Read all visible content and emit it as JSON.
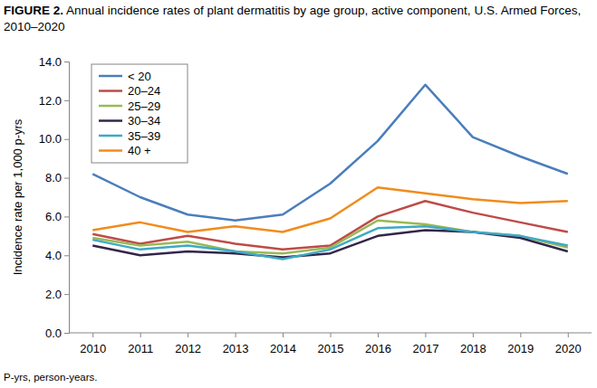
{
  "chart_data": {
    "type": "line",
    "title": "FIGURE 2. Annual incidence rates of plant dermatitis by age group, active component, U.S. Armed Forces, 2010–2020",
    "y_label": "Incidence rate per 1,000 p-yrs",
    "footnote": "P-yrs, person-years.",
    "categories": [
      "2010",
      "2011",
      "2012",
      "2013",
      "2014",
      "2015",
      "2016",
      "2017",
      "2018",
      "2019",
      "2020"
    ],
    "series": [
      {
        "name": "< 20",
        "color": "#4a7ebb",
        "values": [
          8.2,
          7.0,
          6.1,
          5.8,
          6.1,
          7.7,
          9.9,
          12.8,
          10.1,
          9.1,
          8.2
        ]
      },
      {
        "name": "20–24",
        "color": "#be4b48",
        "values": [
          5.1,
          4.6,
          5.0,
          4.6,
          4.3,
          4.5,
          6.0,
          6.8,
          6.2,
          5.7,
          5.2
        ]
      },
      {
        "name": "25–29",
        "color": "#98b954",
        "values": [
          4.9,
          4.5,
          4.7,
          4.2,
          4.1,
          4.4,
          5.8,
          5.6,
          5.2,
          5.0,
          4.4
        ]
      },
      {
        "name": "30–34",
        "color": "#33264a",
        "values": [
          4.5,
          4.0,
          4.2,
          4.1,
          3.9,
          4.1,
          5.0,
          5.3,
          5.2,
          4.9,
          4.2
        ]
      },
      {
        "name": "35–39",
        "color": "#3fa9c5",
        "values": [
          4.8,
          4.3,
          4.5,
          4.2,
          3.8,
          4.3,
          5.4,
          5.5,
          5.2,
          5.0,
          4.5
        ]
      },
      {
        "name": "40 +",
        "color": "#f08c1c",
        "values": [
          5.3,
          5.7,
          5.2,
          5.5,
          5.2,
          5.9,
          7.5,
          7.2,
          6.9,
          6.7,
          6.8
        ]
      }
    ],
    "ylim": [
      0,
      14
    ],
    "yticks": [
      {
        "value": 0,
        "label": "0.0"
      },
      {
        "value": 2,
        "label": "2.0"
      },
      {
        "value": 4,
        "label": "4.0"
      },
      {
        "value": 6,
        "label": "6.0"
      },
      {
        "value": 8,
        "label": "8.0"
      },
      {
        "value": 10,
        "label": "10.0"
      },
      {
        "value": 12,
        "label": "12.0"
      },
      {
        "value": 14,
        "label": "14.0"
      }
    ],
    "grid": false,
    "legend": "upper left"
  }
}
